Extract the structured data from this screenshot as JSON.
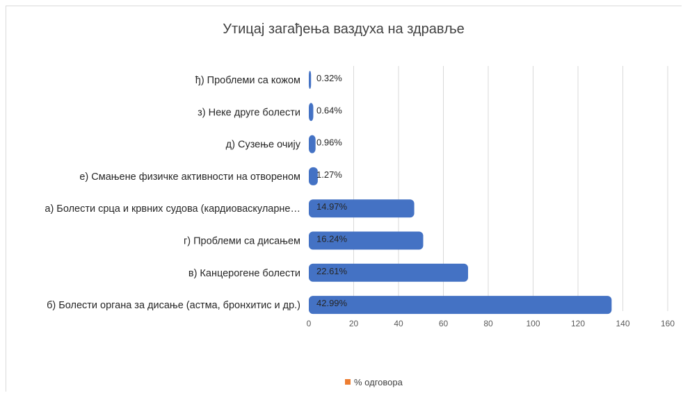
{
  "chart_data": {
    "type": "bar",
    "orientation": "horizontal",
    "title": "Утицај загађења ваздуха на здравље",
    "categories": [
      "ђ) Проблеми са кожом",
      "з) Неке друге болести",
      "д) Сузење очију",
      "е) Смањене физичке активности на отвореном",
      "а) Болести срца и крвних судова (кардиоваскуларне…",
      "г) Проблеми са дисањем",
      "в) Канцерогене болести",
      "б) Болести органа за дисање (астма, бронхитис и др.)"
    ],
    "series": [
      {
        "name": "% одговора",
        "values": [
          1,
          2,
          3,
          4,
          47,
          51,
          71,
          135
        ],
        "data_labels": [
          "0.32%",
          "0.64%",
          "0.96%",
          "1.27%",
          "14.97%",
          "16.24%",
          "22.61%",
          "42.99%"
        ]
      }
    ],
    "xlim": [
      0,
      160
    ],
    "xticks": [
      0,
      20,
      40,
      60,
      80,
      100,
      120,
      140,
      160
    ],
    "grid": true,
    "legend_position": "bottom",
    "colors": {
      "bar": "#4472c4",
      "legend_marker": "#ed7d31"
    }
  }
}
